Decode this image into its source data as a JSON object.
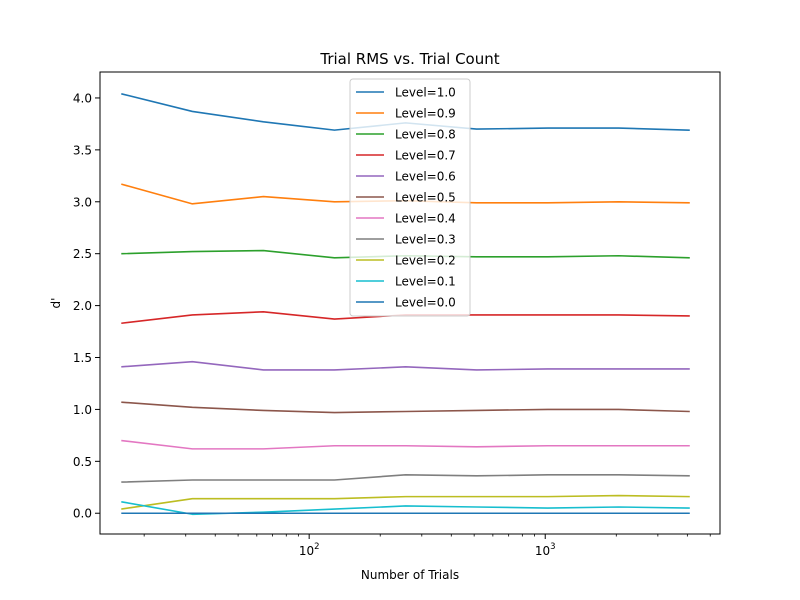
{
  "chart_data": {
    "type": "line",
    "title": "Trial RMS vs. Trial Count",
    "xlabel": "Number of Trials",
    "ylabel": "d'",
    "xscale": "log",
    "xlim": [
      13,
      5500
    ],
    "ylim": [
      -0.2,
      4.25
    ],
    "grid": false,
    "legend_position": "top-center",
    "x": [
      16,
      32,
      64,
      128,
      256,
      512,
      1024,
      2048,
      4096
    ],
    "x_ticks_major": [
      {
        "value": 100,
        "base": "10",
        "exp": "2"
      },
      {
        "value": 1000,
        "base": "10",
        "exp": "3"
      }
    ],
    "y_ticks": [
      {
        "value": 0.0,
        "label": "0.0"
      },
      {
        "value": 0.5,
        "label": "0.5"
      },
      {
        "value": 1.0,
        "label": "1.0"
      },
      {
        "value": 1.5,
        "label": "1.5"
      },
      {
        "value": 2.0,
        "label": "2.0"
      },
      {
        "value": 2.5,
        "label": "2.5"
      },
      {
        "value": 3.0,
        "label": "3.0"
      },
      {
        "value": 3.5,
        "label": "3.5"
      },
      {
        "value": 4.0,
        "label": "4.0"
      }
    ],
    "series": [
      {
        "name": "Level=1.0",
        "color": "#1f77b4",
        "values": [
          4.04,
          3.87,
          3.77,
          3.69,
          3.76,
          3.7,
          3.71,
          3.71,
          3.69
        ]
      },
      {
        "name": "Level=0.9",
        "color": "#ff7f0e",
        "values": [
          3.17,
          2.98,
          3.05,
          3.0,
          3.01,
          2.99,
          2.99,
          3.0,
          2.99
        ]
      },
      {
        "name": "Level=0.8",
        "color": "#2ca02c",
        "values": [
          2.5,
          2.52,
          2.53,
          2.46,
          2.48,
          2.47,
          2.47,
          2.48,
          2.46
        ]
      },
      {
        "name": "Level=0.7",
        "color": "#d62728",
        "values": [
          1.83,
          1.91,
          1.94,
          1.87,
          1.91,
          1.91,
          1.91,
          1.91,
          1.9
        ]
      },
      {
        "name": "Level=0.6",
        "color": "#9467bd",
        "values": [
          1.41,
          1.46,
          1.38,
          1.38,
          1.41,
          1.38,
          1.39,
          1.39,
          1.39
        ]
      },
      {
        "name": "Level=0.5",
        "color": "#8c564b",
        "values": [
          1.07,
          1.02,
          0.99,
          0.97,
          0.98,
          0.99,
          1.0,
          1.0,
          0.98
        ]
      },
      {
        "name": "Level=0.4",
        "color": "#e377c2",
        "values": [
          0.7,
          0.62,
          0.62,
          0.65,
          0.65,
          0.64,
          0.65,
          0.65,
          0.65
        ]
      },
      {
        "name": "Level=0.3",
        "color": "#7f7f7f",
        "values": [
          0.3,
          0.32,
          0.32,
          0.32,
          0.37,
          0.36,
          0.37,
          0.37,
          0.36
        ]
      },
      {
        "name": "Level=0.2",
        "color": "#bcbd22",
        "values": [
          0.04,
          0.14,
          0.14,
          0.14,
          0.16,
          0.16,
          0.16,
          0.17,
          0.16
        ]
      },
      {
        "name": "Level=0.1",
        "color": "#17becf",
        "values": [
          0.11,
          -0.01,
          0.01,
          0.04,
          0.07,
          0.06,
          0.05,
          0.06,
          0.05
        ]
      },
      {
        "name": "Level=0.0",
        "color": "#1f77b4",
        "values": [
          0.0,
          0.0,
          0.0,
          0.0,
          0.0,
          0.0,
          0.0,
          0.0,
          0.0
        ]
      }
    ]
  }
}
